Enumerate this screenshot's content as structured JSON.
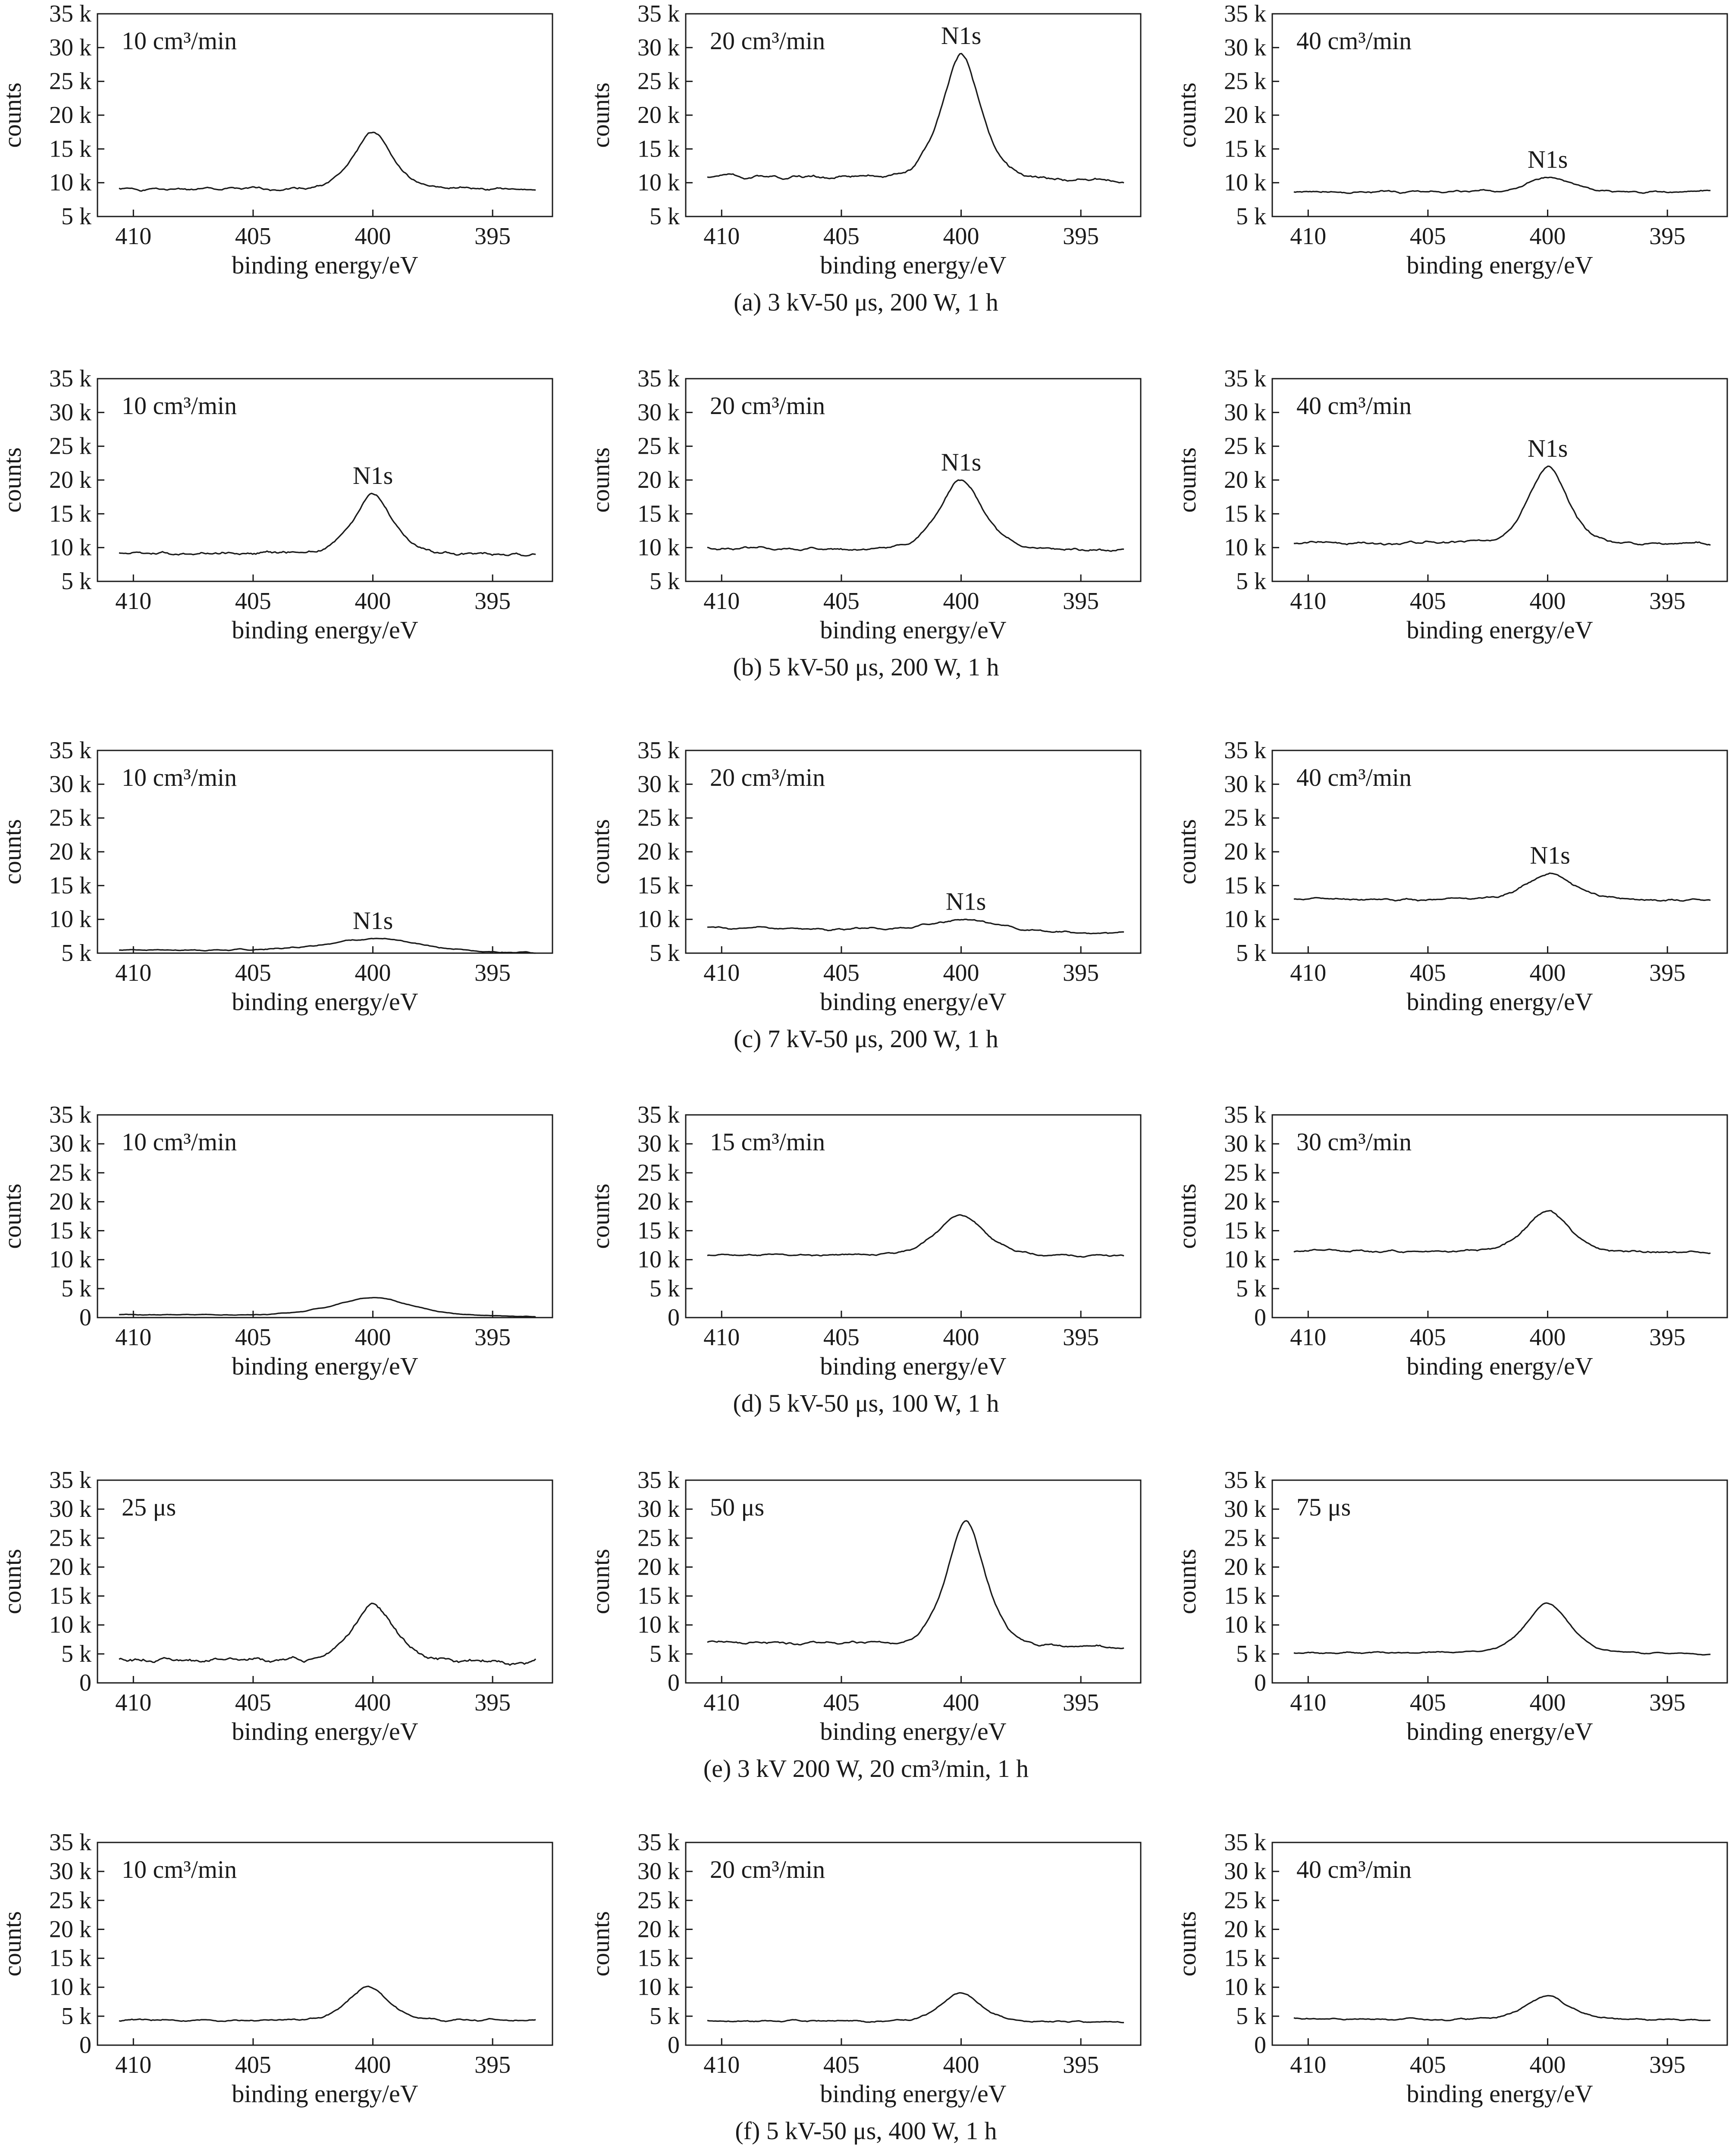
{
  "chart_data": {
    "type": "line",
    "x_ticks": [
      410,
      405,
      400,
      395
    ],
    "x_range": [
      411.5,
      392.5
    ],
    "y_ticks_k": [
      5,
      10,
      15,
      20,
      25,
      30,
      35
    ],
    "y_ticks_0": [
      0,
      5,
      10,
      15,
      20,
      25,
      30,
      35
    ],
    "y_tick_suffix": " k",
    "xlabel": "binding energy/eV",
    "ylabel": "counts",
    "grid": false,
    "rows": [
      {
        "caption": "(a) 3 kV-50 μs, 200 W, 1 h",
        "ylim": [
          5,
          35
        ],
        "panels": [
          {
            "label": "10 cm³/min",
            "peak_label": "",
            "baseline": [
              9,
              9
            ],
            "peak": 17.5,
            "width": 0.9,
            "noise": 0.25,
            "seed": 1,
            "peak_x": 400
          },
          {
            "label": "20 cm³/min",
            "peak_label": "N1s",
            "baseline": [
              11,
              10.2
            ],
            "peak": 29,
            "width": 0.9,
            "noise": 0.3,
            "seed": 2,
            "peak_x": 400
          },
          {
            "label": "40 cm³/min",
            "peak_label": "N1s",
            "baseline": [
              8.6,
              8.7
            ],
            "peak": 10.8,
            "width": 1.0,
            "noise": 0.2,
            "seed": 3,
            "peak_x": 400
          }
        ]
      },
      {
        "caption": "(b) 5 kV-50 μs, 200 W, 1 h",
        "ylim": [
          5,
          35
        ],
        "panels": [
          {
            "label": "10 cm³/min",
            "peak_label": "N1s",
            "baseline": [
              9.2,
              8.9
            ],
            "peak": 18,
            "width": 0.9,
            "noise": 0.3,
            "seed": 4,
            "peak_x": 400
          },
          {
            "label": "20 cm³/min",
            "peak_label": "N1s",
            "baseline": [
              9.8,
              9.5
            ],
            "peak": 20,
            "width": 1.0,
            "noise": 0.25,
            "seed": 5,
            "peak_x": 400
          },
          {
            "label": "40 cm³/min",
            "peak_label": "N1s",
            "baseline": [
              10.7,
              10.5
            ],
            "peak": 22,
            "width": 0.9,
            "noise": 0.25,
            "seed": 6,
            "peak_x": 400
          }
        ]
      },
      {
        "caption": "(c) 7 kV-50 μs, 200 W, 1 h",
        "ylim": [
          5,
          35
        ],
        "panels": [
          {
            "label": "10 cm³/min",
            "peak_label": "N1s",
            "baseline": [
              5.5,
              5.0
            ],
            "peak": 7.2,
            "width": 2.2,
            "noise": 0.12,
            "seed": 7,
            "peak_x": 400
          },
          {
            "label": "20 cm³/min",
            "peak_label": "N1s",
            "baseline": [
              8.8,
              7.8
            ],
            "peak": 10.2,
            "width": 1.5,
            "noise": 0.2,
            "seed": 8,
            "peak_x": 399.8
          },
          {
            "label": "40 cm³/min",
            "peak_label": "N1s",
            "baseline": [
              13,
              12.8
            ],
            "peak": 16.8,
            "width": 1.1,
            "noise": 0.2,
            "seed": 9,
            "peak_x": 399.9
          }
        ]
      },
      {
        "caption": "(d) 5 kV-50 μs, 100 W, 1 h",
        "ylim": [
          0,
          35
        ],
        "panels": [
          {
            "label": "10 cm³/min",
            "peak_label": "",
            "baseline": [
              0.5,
              0.1
            ],
            "peak": 3.5,
            "width": 1.8,
            "noise": 0.08,
            "seed": 10,
            "peak_x": 400
          },
          {
            "label": "15 cm³/min",
            "peak_label": "",
            "baseline": [
              10.8,
              10.6
            ],
            "peak": 17.8,
            "width": 1.1,
            "noise": 0.2,
            "seed": 11,
            "peak_x": 400
          },
          {
            "label": "30 cm³/min",
            "peak_label": "",
            "baseline": [
              11.5,
              11.2
            ],
            "peak": 18.5,
            "width": 1.0,
            "noise": 0.25,
            "seed": 12,
            "peak_x": 400
          }
        ]
      },
      {
        "caption": "(e) 3 kV 200 W, 20 cm³/min, 1 h",
        "ylim": [
          0,
          35
        ],
        "panels": [
          {
            "label": "25 μs",
            "peak_label": "",
            "baseline": [
              4,
              3.5
            ],
            "peak": 13.5,
            "width": 1.0,
            "noise": 0.45,
            "seed": 13,
            "peak_x": 400
          },
          {
            "label": "50 μs",
            "peak_label": "",
            "baseline": [
              7,
              6
            ],
            "peak": 27.8,
            "width": 0.9,
            "noise": 0.3,
            "seed": 14,
            "peak_x": 399.8
          },
          {
            "label": "75 μs",
            "peak_label": "",
            "baseline": [
              5.2,
              5
            ],
            "peak": 13.8,
            "width": 1.0,
            "noise": 0.15,
            "seed": 15,
            "peak_x": 400
          }
        ]
      },
      {
        "caption": "(f) 5 kV-50 μs, 400 W, 1 h",
        "ylim": [
          0,
          35
        ],
        "panels": [
          {
            "label": "10 cm³/min",
            "peak_label": "",
            "baseline": [
              4.3,
              4.2
            ],
            "peak": 10.2,
            "width": 0.9,
            "noise": 0.2,
            "seed": 16,
            "peak_x": 400.2
          },
          {
            "label": "20 cm³/min",
            "peak_label": "",
            "baseline": [
              4.2,
              4.0
            ],
            "peak": 9.0,
            "width": 0.9,
            "noise": 0.18,
            "seed": 17,
            "peak_x": 400
          },
          {
            "label": "40 cm³/min",
            "peak_label": "",
            "baseline": [
              4.5,
              4.3
            ],
            "peak": 8.5,
            "width": 1.0,
            "noise": 0.18,
            "seed": 18,
            "peak_x": 400
          }
        ]
      }
    ]
  }
}
